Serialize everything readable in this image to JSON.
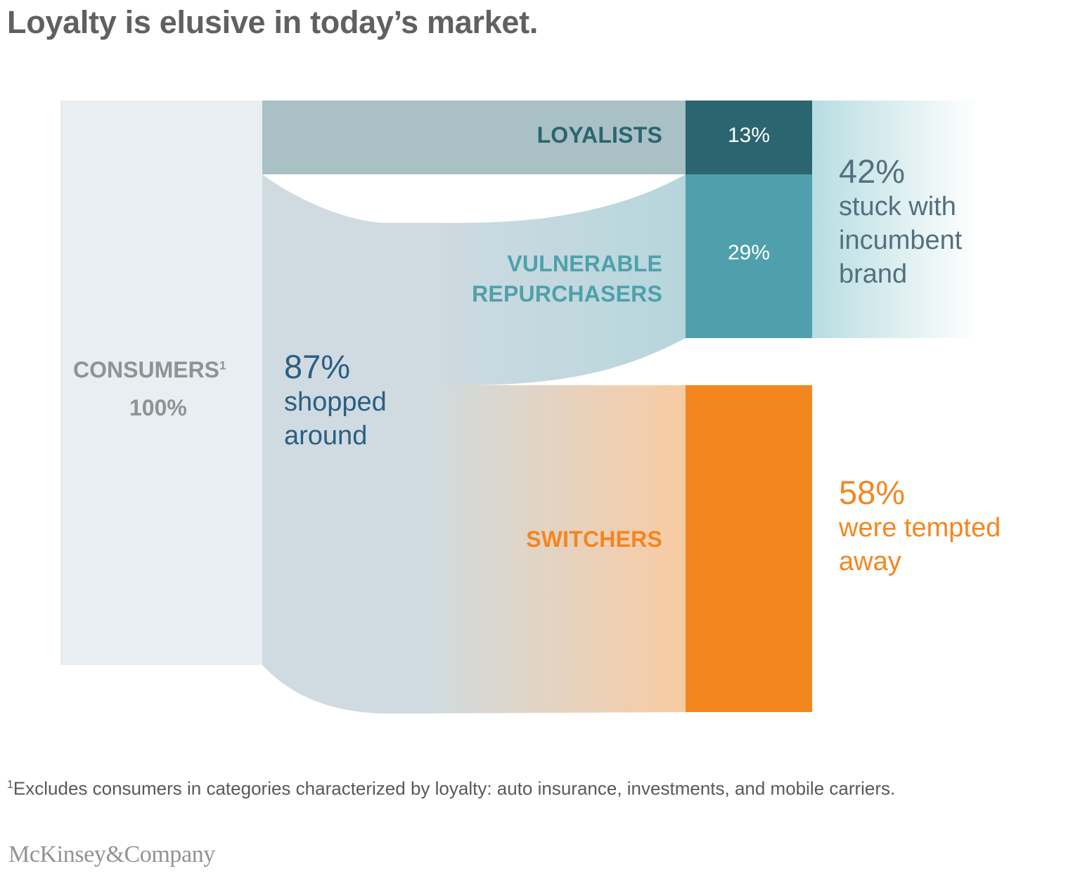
{
  "title": "Loyalty is elusive in today’s market.",
  "consumers": {
    "label": "CONSUMERS",
    "footnote_ref": "1",
    "value": "100%"
  },
  "shopped_around": {
    "value": "87%",
    "line1": "shopped",
    "line2": "around"
  },
  "segments": {
    "loyalists": {
      "label": "LOYALISTS",
      "value": "13%"
    },
    "vulnerable": {
      "line1": "VULNERABLE",
      "line2": "REPURCHASERS",
      "value": "29%"
    },
    "switchers": {
      "label": "SWITCHERS"
    }
  },
  "outcomes": {
    "stuck": {
      "value": "42%",
      "line1": "stuck with",
      "line2": "incumbent",
      "line3": "brand"
    },
    "tempted": {
      "value": "58%",
      "line1": "were tempted",
      "line2": "away"
    }
  },
  "footnote": {
    "marker": "1",
    "text": "Excludes consumers in categories characterized by loyalty: auto insurance, investments, and mobile carriers."
  },
  "logo": "McKinsey&Company",
  "colors": {
    "consumers_fill": "#e8eef1",
    "loyalists_band": "#a9c1c5",
    "loyalists_box": "#2b6570",
    "vulnerable_box": "#4fa0ac",
    "switchers_box": "#f4861f",
    "shopped_band": "#cfdbe1",
    "title_text": "#5f6062"
  },
  "chart_data": {
    "type": "sankey",
    "nodes": [
      "CONSUMERS",
      "LOYALISTS",
      "VULNERABLE REPURCHASERS",
      "SWITCHERS"
    ],
    "links": [
      {
        "from": "CONSUMERS",
        "to": "LOYALISTS",
        "value": 13
      },
      {
        "from": "CONSUMERS",
        "to": "VULNERABLE REPURCHASERS",
        "value": 29
      },
      {
        "from": "CONSUMERS",
        "to": "SWITCHERS",
        "value": 58
      }
    ],
    "groups": [
      {
        "label": "shopped around",
        "value": 87
      },
      {
        "label": "stuck with incumbent brand",
        "value": 42
      },
      {
        "label": "were tempted away",
        "value": 58
      }
    ]
  }
}
